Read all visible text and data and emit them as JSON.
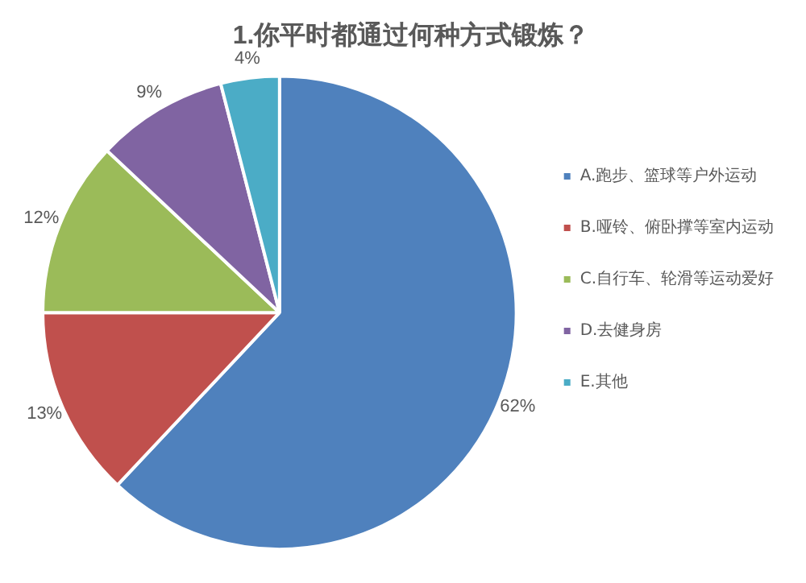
{
  "chart_data": {
    "type": "pie",
    "title": "1.你平时都通过何种方式锻炼？",
    "categories": [
      "A.跑步、篮球等户外运动",
      "B.哑铃、俯卧撑等室内运动",
      "C.自行车、轮滑等运动爱好",
      "D.去健身房",
      "E.其他"
    ],
    "values": [
      62,
      13,
      12,
      9,
      4
    ],
    "colors": [
      "#4f81bd",
      "#c0504d",
      "#9bbb59",
      "#8064a2",
      "#4bacc6"
    ],
    "value_labels": [
      "62%",
      "13%",
      "12%",
      "9%",
      "4%"
    ],
    "legend": "right"
  }
}
